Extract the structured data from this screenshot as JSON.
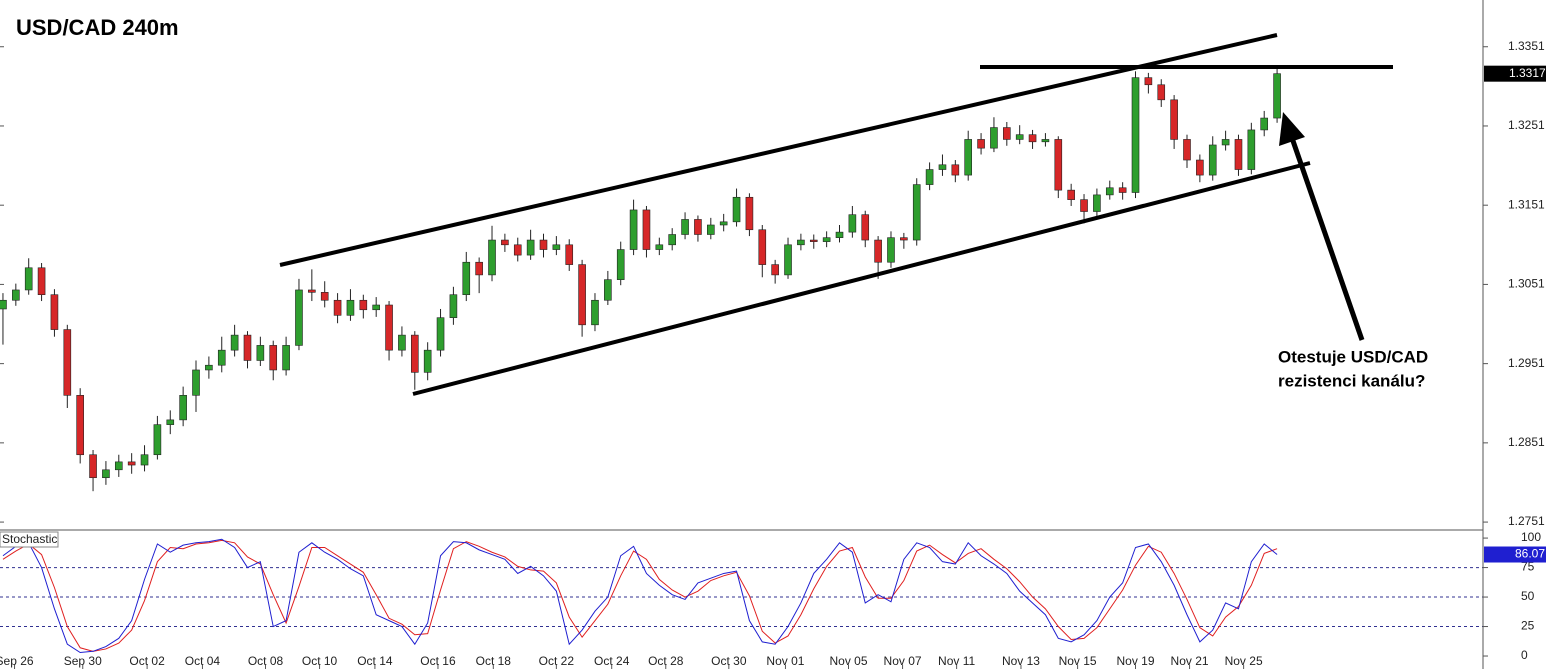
{
  "chart_data": [
    {
      "type": "candlestick",
      "title": "USD/CAD 240m",
      "annotations": [
        "Otestuje USD/CAD",
        "rezistenci kanálu?"
      ],
      "up_color": "#2e9e2e",
      "down_color": "#d62728",
      "xlim": [
        -0.23,
        115
      ],
      "ylim": [
        1.2741,
        1.341
      ],
      "yticks": [
        1.2751,
        1.2851,
        1.2951,
        1.3051,
        1.3151,
        1.3251,
        1.3351
      ],
      "candles": [
        [
          1.302,
          1.304,
          1.2975,
          1.3031
        ],
        [
          1.3031,
          1.3052,
          1.3024,
          1.3044
        ],
        [
          1.3044,
          1.3084,
          1.3038,
          1.3072
        ],
        [
          1.3072,
          1.3078,
          1.303,
          1.3038
        ],
        [
          1.3038,
          1.3045,
          1.2985,
          1.2994
        ],
        [
          1.2994,
          1.3,
          1.2895,
          1.2911
        ],
        [
          1.2911,
          1.292,
          1.2825,
          1.2836
        ],
        [
          1.2836,
          1.2842,
          1.279,
          1.2807
        ],
        [
          1.2807,
          1.2828,
          1.2798,
          1.2817
        ],
        [
          1.2817,
          1.2836,
          1.2808,
          1.2827
        ],
        [
          1.2827,
          1.2838,
          1.2812,
          1.2823
        ],
        [
          1.2823,
          1.2848,
          1.2815,
          1.2836
        ],
        [
          1.2836,
          1.2885,
          1.283,
          1.2874
        ],
        [
          1.2874,
          1.2892,
          1.2862,
          1.288
        ],
        [
          1.288,
          1.2922,
          1.2872,
          1.2911
        ],
        [
          1.2911,
          1.2955,
          1.289,
          1.2943
        ],
        [
          1.2943,
          1.296,
          1.2932,
          1.2949
        ],
        [
          1.2949,
          1.2985,
          1.294,
          1.2968
        ],
        [
          1.2968,
          1.3,
          1.296,
          1.2987
        ],
        [
          1.2987,
          1.2992,
          1.2945,
          1.2955
        ],
        [
          1.2955,
          1.2985,
          1.2948,
          1.2974
        ],
        [
          1.2974,
          1.298,
          1.293,
          1.2943
        ],
        [
          1.2943,
          1.2985,
          1.2936,
          1.2974
        ],
        [
          1.2974,
          1.3058,
          1.2968,
          1.3044
        ],
        [
          1.3044,
          1.307,
          1.303,
          1.3041
        ],
        [
          1.3041,
          1.3055,
          1.3022,
          1.3031
        ],
        [
          1.3031,
          1.304,
          1.3002,
          1.3012
        ],
        [
          1.3012,
          1.3045,
          1.3005,
          1.3031
        ],
        [
          1.3031,
          1.3038,
          1.3008,
          1.3019
        ],
        [
          1.3019,
          1.3035,
          1.301,
          1.3025
        ],
        [
          1.3025,
          1.303,
          1.2955,
          1.2968
        ],
        [
          1.2968,
          1.2998,
          1.296,
          1.2987
        ],
        [
          1.2987,
          1.2992,
          1.2918,
          1.294
        ],
        [
          1.294,
          1.2978,
          1.293,
          1.2968
        ],
        [
          1.2968,
          1.302,
          1.296,
          1.3009
        ],
        [
          1.3009,
          1.3048,
          1.3,
          1.3038
        ],
        [
          1.3038,
          1.3092,
          1.303,
          1.3079
        ],
        [
          1.3079,
          1.3085,
          1.304,
          1.3063
        ],
        [
          1.3063,
          1.3125,
          1.3055,
          1.3107
        ],
        [
          1.3107,
          1.3115,
          1.3092,
          1.3101
        ],
        [
          1.3101,
          1.311,
          1.308,
          1.3088
        ],
        [
          1.3088,
          1.312,
          1.3082,
          1.3107
        ],
        [
          1.3107,
          1.3115,
          1.3085,
          1.3095
        ],
        [
          1.3095,
          1.3112,
          1.3088,
          1.3101
        ],
        [
          1.3101,
          1.3108,
          1.3068,
          1.3076
        ],
        [
          1.3076,
          1.3082,
          1.2985,
          1.3
        ],
        [
          1.3,
          1.304,
          1.2992,
          1.3031
        ],
        [
          1.3031,
          1.3068,
          1.3025,
          1.3057
        ],
        [
          1.3057,
          1.3105,
          1.305,
          1.3095
        ],
        [
          1.3095,
          1.3158,
          1.3088,
          1.3145
        ],
        [
          1.3145,
          1.315,
          1.3085,
          1.3095
        ],
        [
          1.3095,
          1.311,
          1.3088,
          1.3101
        ],
        [
          1.3101,
          1.3122,
          1.3094,
          1.3114
        ],
        [
          1.3114,
          1.3142,
          1.3108,
          1.3133
        ],
        [
          1.3133,
          1.3138,
          1.3105,
          1.3114
        ],
        [
          1.3114,
          1.3135,
          1.3108,
          1.3126
        ],
        [
          1.3126,
          1.314,
          1.3118,
          1.313
        ],
        [
          1.313,
          1.3172,
          1.3124,
          1.3161
        ],
        [
          1.3161,
          1.3166,
          1.3112,
          1.312
        ],
        [
          1.312,
          1.3126,
          1.306,
          1.3076
        ],
        [
          1.3076,
          1.3082,
          1.3052,
          1.3063
        ],
        [
          1.3063,
          1.311,
          1.3058,
          1.3101
        ],
        [
          1.3101,
          1.3115,
          1.3094,
          1.3107
        ],
        [
          1.3107,
          1.3114,
          1.3096,
          1.3105
        ],
        [
          1.3105,
          1.3118,
          1.3098,
          1.311
        ],
        [
          1.311,
          1.3126,
          1.3104,
          1.3117
        ],
        [
          1.3117,
          1.315,
          1.311,
          1.3139
        ],
        [
          1.3139,
          1.3144,
          1.3098,
          1.3107
        ],
        [
          1.3107,
          1.3112,
          1.3058,
          1.3079
        ],
        [
          1.3079,
          1.3118,
          1.3072,
          1.311
        ],
        [
          1.311,
          1.3116,
          1.3096,
          1.3107
        ],
        [
          1.3107,
          1.3185,
          1.31,
          1.3177
        ],
        [
          1.3177,
          1.3205,
          1.317,
          1.3196
        ],
        [
          1.3196,
          1.3215,
          1.3188,
          1.3202
        ],
        [
          1.3202,
          1.3208,
          1.318,
          1.3189
        ],
        [
          1.3189,
          1.3245,
          1.3182,
          1.3234
        ],
        [
          1.3234,
          1.3242,
          1.3215,
          1.3223
        ],
        [
          1.3223,
          1.3262,
          1.3218,
          1.3249
        ],
        [
          1.3249,
          1.3256,
          1.3226,
          1.3234
        ],
        [
          1.3234,
          1.3252,
          1.3228,
          1.324
        ],
        [
          1.324,
          1.3246,
          1.3222,
          1.3231
        ],
        [
          1.3231,
          1.3242,
          1.3225,
          1.3234
        ],
        [
          1.3234,
          1.3238,
          1.316,
          1.317
        ],
        [
          1.317,
          1.3178,
          1.315,
          1.3158
        ],
        [
          1.3158,
          1.3165,
          1.3128,
          1.3143
        ],
        [
          1.3143,
          1.3172,
          1.3136,
          1.3164
        ],
        [
          1.3164,
          1.3182,
          1.3158,
          1.3173
        ],
        [
          1.3173,
          1.318,
          1.3158,
          1.3167
        ],
        [
          1.3167,
          1.332,
          1.316,
          1.3312
        ],
        [
          1.3312,
          1.3318,
          1.3292,
          1.3303
        ],
        [
          1.3303,
          1.331,
          1.3275,
          1.3284
        ],
        [
          1.3284,
          1.329,
          1.3222,
          1.3234
        ],
        [
          1.3234,
          1.324,
          1.3198,
          1.3208
        ],
        [
          1.3208,
          1.3215,
          1.318,
          1.3189
        ],
        [
          1.3189,
          1.3238,
          1.3182,
          1.3227
        ],
        [
          1.3227,
          1.3245,
          1.322,
          1.3234
        ],
        [
          1.3234,
          1.324,
          1.3188,
          1.3196
        ],
        [
          1.3196,
          1.3255,
          1.319,
          1.3246
        ],
        [
          1.3246,
          1.327,
          1.3238,
          1.3261
        ],
        [
          1.3261,
          1.3325,
          1.3255,
          1.3317
        ]
      ]
    },
    {
      "type": "line",
      "title": "Stochastic",
      "xlim": [
        -0.23,
        115
      ],
      "ylim": [
        -11,
        106
      ],
      "yticks": [
        0,
        25,
        50,
        75,
        100
      ],
      "levels": [
        75,
        50,
        25
      ],
      "xticks": [
        {
          "value": 0.9,
          "label": "Sep 26"
        },
        {
          "value": 6.2,
          "label": "Sep 30"
        },
        {
          "value": 11.2,
          "label": "Oct 02"
        },
        {
          "value": 15.5,
          "label": "Oct 04"
        },
        {
          "value": 20.4,
          "label": "Oct 08"
        },
        {
          "value": 24.6,
          "label": "Oct 10"
        },
        {
          "value": 28.9,
          "label": "Oct 14"
        },
        {
          "value": 33.8,
          "label": "Oct 16"
        },
        {
          "value": 38.1,
          "label": "Oct 18"
        },
        {
          "value": 43,
          "label": "Oct 22"
        },
        {
          "value": 47.3,
          "label": "Oct 24"
        },
        {
          "value": 51.5,
          "label": "Oct 28"
        },
        {
          "value": 56.4,
          "label": "Oct 30"
        },
        {
          "value": 60.8,
          "label": "Nov 01"
        },
        {
          "value": 65.7,
          "label": "Nov 05"
        },
        {
          "value": 69.9,
          "label": "Nov 07"
        },
        {
          "value": 74.1,
          "label": "Nov 11"
        },
        {
          "value": 79.1,
          "label": "Nov 13"
        },
        {
          "value": 83.5,
          "label": "Nov 15"
        },
        {
          "value": 88,
          "label": "Nov 19"
        },
        {
          "value": 92.2,
          "label": "Nov 21"
        },
        {
          "value": 96.4,
          "label": "Nov 25"
        }
      ],
      "series": [
        {
          "color": "#1f1fd0",
          "values": [
            85,
            93,
            96,
            75,
            40,
            10,
            3,
            4,
            8,
            15,
            30,
            65,
            95,
            88,
            94,
            96,
            97,
            99,
            92,
            75,
            80,
            25,
            30,
            88,
            96,
            88,
            82,
            74,
            68,
            35,
            30,
            25,
            10,
            28,
            85,
            97,
            96,
            90,
            86,
            82,
            70,
            76,
            68,
            55,
            10,
            22,
            38,
            50,
            85,
            93,
            70,
            60,
            52,
            48,
            62,
            66,
            70,
            72,
            30,
            12,
            10,
            25,
            45,
            70,
            82,
            96,
            88,
            45,
            52,
            46,
            82,
            96,
            92,
            80,
            78,
            96,
            85,
            78,
            70,
            55,
            45,
            35,
            15,
            12,
            18,
            30,
            50,
            62,
            92,
            95,
            80,
            60,
            35,
            12,
            22,
            45,
            40,
            80,
            95,
            86.07
          ]
        },
        {
          "color": "#e02020",
          "values": [
            82,
            89,
            95,
            86,
            58,
            25,
            7,
            4,
            6,
            11,
            22,
            47,
            80,
            92,
            91,
            95,
            96,
            98,
            96,
            84,
            78,
            52,
            28,
            59,
            92,
            92,
            85,
            78,
            71,
            52,
            32,
            27,
            18,
            19,
            56,
            91,
            97,
            93,
            88,
            84,
            76,
            73,
            72,
            62,
            33,
            16,
            30,
            44,
            68,
            89,
            82,
            65,
            56,
            50,
            55,
            64,
            68,
            71,
            51,
            21,
            11,
            17,
            35,
            57,
            76,
            89,
            92,
            67,
            49,
            49,
            64,
            89,
            94,
            86,
            79,
            87,
            91,
            82,
            74,
            63,
            50,
            40,
            25,
            14,
            15,
            24,
            40,
            56,
            77,
            93,
            88,
            70,
            48,
            24,
            17,
            33,
            42,
            60,
            87,
            91
          ]
        }
      ]
    }
  ]
}
